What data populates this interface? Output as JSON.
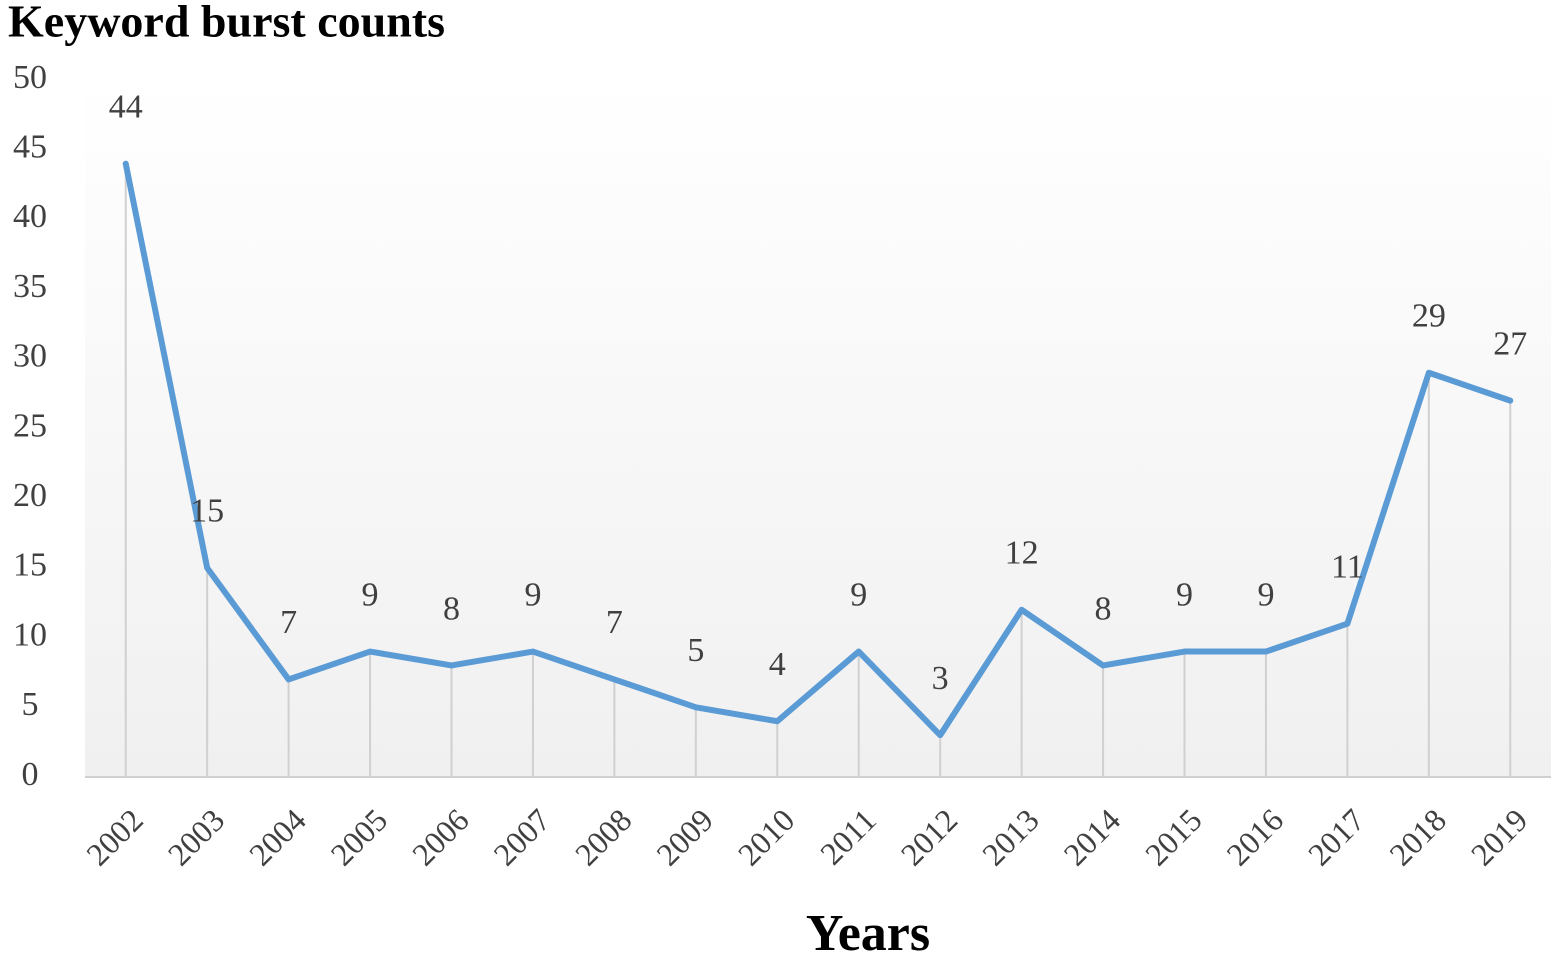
{
  "chart_data": {
    "type": "line",
    "title": "Keyword burst counts",
    "x_label": "Years",
    "categories": [
      "2002",
      "2003",
      "2004",
      "2005",
      "2006",
      "2007",
      "2008",
      "2009",
      "2010",
      "2011",
      "2012",
      "2013",
      "2014",
      "2015",
      "2016",
      "2017",
      "2018",
      "2019"
    ],
    "values": [
      44,
      15,
      7,
      9,
      8,
      9,
      7,
      5,
      4,
      9,
      3,
      12,
      8,
      9,
      9,
      11,
      29,
      27
    ],
    "color": "#5b9bd5",
    "ylim": [
      0,
      50
    ],
    "yticks": [
      0,
      5,
      10,
      15,
      20,
      25,
      30,
      35,
      40,
      45,
      50
    ],
    "grid": false,
    "drop_lines": true,
    "data_labels": true
  }
}
